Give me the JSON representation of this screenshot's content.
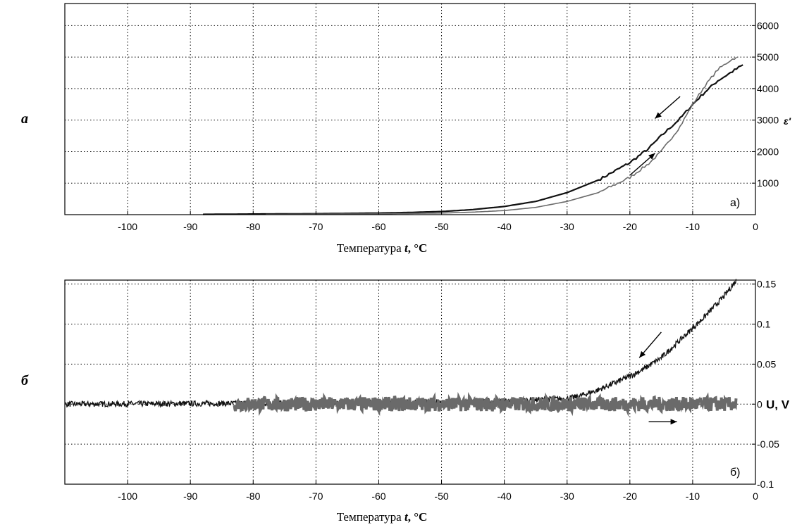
{
  "panel_letters": {
    "top": "а",
    "bottom": "б"
  },
  "chart_data": [
    {
      "type": "line",
      "panel_label": "а)",
      "xlabel": "Температура",
      "xlabel_var": "t",
      "xlabel_unit": ", °C",
      "ylabel": "ε'",
      "xlim": [
        -110,
        0
      ],
      "ylim": [
        0,
        6700
      ],
      "x_ticks": [
        -100,
        -90,
        -80,
        -70,
        -60,
        -50,
        -40,
        -30,
        -20,
        -10,
        0
      ],
      "y_ticks": [
        1000,
        2000,
        3000,
        4000,
        5000,
        6000
      ],
      "grid": true,
      "colors": {
        "cooling": "#111111",
        "heating": "#6a6a6a"
      },
      "series": [
        {
          "key": "cooling",
          "direction_arrow": "left",
          "x": [
            -88,
            -80,
            -70,
            -60,
            -55,
            -50,
            -45,
            -40,
            -35,
            -30,
            -25,
            -20,
            -17,
            -15,
            -12,
            -10,
            -8,
            -6,
            -4,
            -2
          ],
          "y": [
            10,
            20,
            30,
            50,
            70,
            100,
            160,
            260,
            420,
            700,
            1100,
            1650,
            2100,
            2500,
            3050,
            3500,
            3900,
            4250,
            4500,
            4750
          ]
        },
        {
          "key": "heating",
          "direction_arrow": "right",
          "x": [
            -78,
            -70,
            -60,
            -50,
            -45,
            -40,
            -35,
            -30,
            -25,
            -20,
            -17,
            -15,
            -12,
            -10,
            -8,
            -6,
            -4,
            -3
          ],
          "y": [
            10,
            15,
            25,
            50,
            80,
            130,
            230,
            420,
            700,
            1180,
            1620,
            2000,
            2800,
            3500,
            4100,
            4600,
            4900,
            5000
          ]
        }
      ]
    },
    {
      "type": "line",
      "panel_label": "б)",
      "xlabel": "Температура",
      "xlabel_var": "t",
      "xlabel_unit": ", °C",
      "ylabel": "U, V",
      "xlim": [
        -110,
        0
      ],
      "ylim": [
        -0.1,
        0.155
      ],
      "x_ticks": [
        -100,
        -90,
        -80,
        -70,
        -60,
        -50,
        -40,
        -30,
        -20,
        -10,
        0
      ],
      "y_ticks": [
        -0.1,
        -0.05,
        0,
        0.05,
        0.1,
        0.15
      ],
      "y_tick_labels": [
        "-0.1",
        "-0.05",
        "0",
        "0.05",
        "0.1",
        "0.15"
      ],
      "grid": true,
      "colors": {
        "cooling": "#111111",
        "heating": "#6a6a6a"
      },
      "series": [
        {
          "key": "cooling",
          "direction_arrow": "left",
          "x": [
            -110,
            -80,
            -60,
            -40,
            -30,
            -28,
            -25,
            -22,
            -20,
            -18,
            -15,
            -12,
            -10,
            -8,
            -5,
            -3
          ],
          "y": [
            0,
            0.001,
            0.002,
            0.004,
            0.007,
            0.01,
            0.018,
            0.028,
            0.035,
            0.043,
            0.058,
            0.08,
            0.095,
            0.11,
            0.135,
            0.155
          ]
        },
        {
          "key": "heating",
          "direction_arrow": "right",
          "x": [
            -83,
            -60,
            -40,
            -20,
            -3
          ],
          "y": [
            0,
            0,
            0,
            0,
            0
          ]
        }
      ]
    }
  ]
}
